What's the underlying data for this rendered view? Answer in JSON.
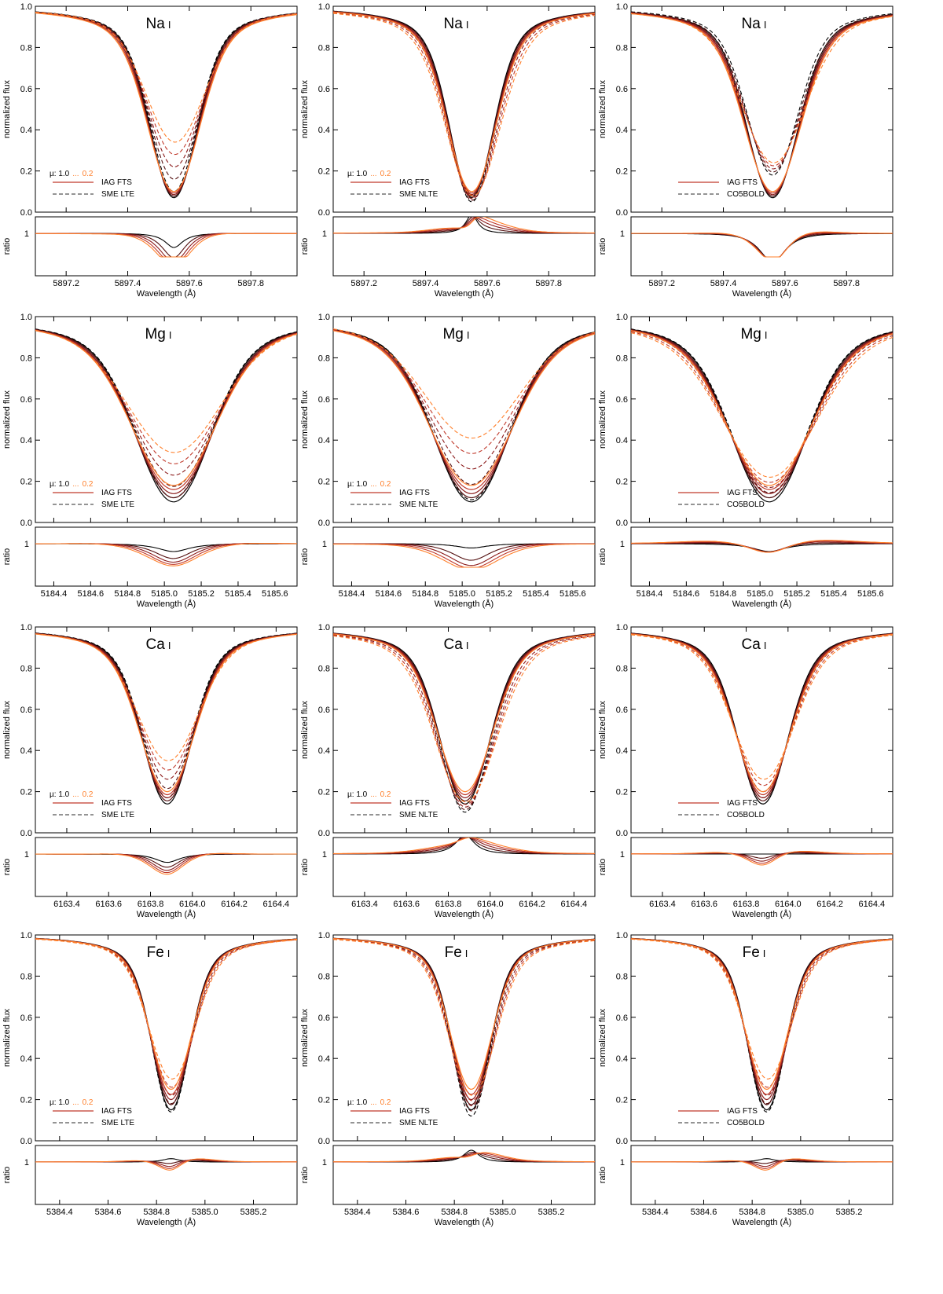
{
  "figure": {
    "ylabel_top": "normalized flux",
    "ylabel_bottom": "ratio",
    "xlabel": "Wavelength (Å)",
    "ratio_tick": "1",
    "mu_legend": {
      "prefix": "µ: 1.0",
      "dots": "...",
      "end": "0.2"
    },
    "legend_observed": "IAG FTS",
    "colors": {
      "black": "#000000",
      "dark_red": "#8b1a1a",
      "red": "#c0392b",
      "orange": "#ff7f2a",
      "axis": "#000000"
    }
  },
  "chart_data": [
    {
      "type": "line",
      "element": "Na",
      "ion": "I",
      "model": "SME LTE",
      "show_mu": true,
      "center": 5897.55,
      "depth_obs": [
        0.93,
        0.9
      ],
      "depth_model": [
        0.9,
        0.66
      ],
      "width": 0.13,
      "xlim": [
        5897.1,
        5897.95
      ],
      "xticks": [
        "5897.2",
        "5897.4",
        "5897.6",
        "5897.8"
      ],
      "yticks": [
        "0.0",
        "0.2",
        "0.4",
        "0.6",
        "0.8",
        "1.0"
      ],
      "ylim": [
        0,
        1
      ]
    },
    {
      "type": "line",
      "element": "Na",
      "ion": "I",
      "model": "SME NLTE",
      "show_mu": true,
      "center": 5897.55,
      "depth_obs": [
        0.93,
        0.9
      ],
      "depth_model": [
        0.95,
        0.92
      ],
      "width": 0.12,
      "xlim": [
        5897.1,
        5897.95
      ],
      "xticks": [
        "5897.2",
        "5897.4",
        "5897.6",
        "5897.8"
      ],
      "yticks": [
        "0.0",
        "0.2",
        "0.4",
        "0.6",
        "0.8",
        "1.0"
      ],
      "ylim": [
        0,
        1
      ]
    },
    {
      "type": "line",
      "element": "Na",
      "ion": "I",
      "model": "CO5BOLD",
      "show_mu": false,
      "center": 5897.56,
      "depth_obs": [
        0.93,
        0.9
      ],
      "depth_model": [
        0.82,
        0.76
      ],
      "width": 0.14,
      "xlim": [
        5897.1,
        5897.95
      ],
      "xticks": [
        "5897.2",
        "5897.4",
        "5897.6",
        "5897.8"
      ],
      "yticks": [
        "0.0",
        "0.2",
        "0.4",
        "0.6",
        "0.8",
        "1.0"
      ],
      "ylim": [
        0,
        1
      ]
    },
    {
      "type": "line",
      "element": "Mg",
      "ion": "I",
      "model": "SME LTE",
      "show_mu": true,
      "center": 5185.05,
      "depth_obs": [
        0.9,
        0.82
      ],
      "depth_model": [
        0.88,
        0.66
      ],
      "width": 0.35,
      "xlim": [
        5184.3,
        5185.72
      ],
      "xticks": [
        "5184.4",
        "5184.6",
        "5184.8",
        "5185.0",
        "5185.2",
        "5185.4",
        "5185.6"
      ],
      "yticks": [
        "0.0",
        "0.2",
        "0.4",
        "0.6",
        "0.8",
        "1.0"
      ],
      "ylim": [
        0,
        1
      ]
    },
    {
      "type": "line",
      "element": "Mg",
      "ion": "I",
      "model": "SME NLTE",
      "show_mu": true,
      "center": 5185.05,
      "depth_obs": [
        0.9,
        0.82
      ],
      "depth_model": [
        0.89,
        0.59
      ],
      "width": 0.35,
      "xlim": [
        5184.3,
        5185.72
      ],
      "xticks": [
        "5184.4",
        "5184.6",
        "5184.8",
        "5185.0",
        "5185.2",
        "5185.4",
        "5185.6"
      ],
      "yticks": [
        "0.0",
        "0.2",
        "0.4",
        "0.6",
        "0.8",
        "1.0"
      ],
      "ylim": [
        0,
        1
      ]
    },
    {
      "type": "line",
      "element": "Mg",
      "ion": "I",
      "model": "CO5BOLD",
      "show_mu": false,
      "center": 5185.05,
      "depth_obs": [
        0.9,
        0.82
      ],
      "depth_model": [
        0.88,
        0.78
      ],
      "width": 0.35,
      "xlim": [
        5184.3,
        5185.72
      ],
      "xticks": [
        "5184.4",
        "5184.6",
        "5184.8",
        "5185.0",
        "5185.2",
        "5185.4",
        "5185.6"
      ],
      "yticks": [
        "0.0",
        "0.2",
        "0.4",
        "0.6",
        "0.8",
        "1.0"
      ],
      "ylim": [
        0,
        1
      ]
    },
    {
      "type": "line",
      "element": "Ca",
      "ion": "I",
      "model": "SME LTE",
      "show_mu": true,
      "center": 6163.88,
      "depth_obs": [
        0.86,
        0.8
      ],
      "depth_model": [
        0.83,
        0.65
      ],
      "width": 0.2,
      "xlim": [
        6163.25,
        6164.5
      ],
      "xticks": [
        "6163.4",
        "6163.6",
        "6163.8",
        "6164.0",
        "6164.2",
        "6164.4"
      ],
      "yticks": [
        "0.0",
        "0.2",
        "0.4",
        "0.6",
        "0.8",
        "1.0"
      ],
      "ylim": [
        0,
        1
      ]
    },
    {
      "type": "line",
      "element": "Ca",
      "ion": "I",
      "model": "SME NLTE",
      "show_mu": true,
      "center": 6163.88,
      "depth_obs": [
        0.86,
        0.8
      ],
      "depth_model": [
        0.9,
        0.85
      ],
      "width": 0.2,
      "xlim": [
        6163.25,
        6164.5
      ],
      "xticks": [
        "6163.4",
        "6163.6",
        "6163.8",
        "6164.0",
        "6164.2",
        "6164.4"
      ],
      "yticks": [
        "0.0",
        "0.2",
        "0.4",
        "0.6",
        "0.8",
        "1.0"
      ],
      "ylim": [
        0,
        1
      ]
    },
    {
      "type": "line",
      "element": "Ca",
      "ion": "I",
      "model": "CO5BOLD",
      "show_mu": false,
      "center": 6163.88,
      "depth_obs": [
        0.86,
        0.8
      ],
      "depth_model": [
        0.86,
        0.74
      ],
      "width": 0.2,
      "xlim": [
        6163.25,
        6164.5
      ],
      "xticks": [
        "6163.4",
        "6163.6",
        "6163.8",
        "6164.0",
        "6164.2",
        "6164.4"
      ],
      "yticks": [
        "0.0",
        "0.2",
        "0.4",
        "0.6",
        "0.8",
        "1.0"
      ],
      "ylim": [
        0,
        1
      ]
    },
    {
      "type": "line",
      "element": "Fe",
      "ion": "I",
      "model": "SME LTE",
      "show_mu": true,
      "center": 5384.86,
      "depth_obs": [
        0.85,
        0.75
      ],
      "depth_model": [
        0.86,
        0.7
      ],
      "width": 0.13,
      "xlim": [
        5384.3,
        5385.38
      ],
      "xticks": [
        "5384.4",
        "5384.6",
        "5384.8",
        "5385.0",
        "5385.2"
      ],
      "yticks": [
        "0.0",
        "0.2",
        "0.4",
        "0.6",
        "0.8",
        "1.0"
      ],
      "ylim": [
        0,
        1
      ]
    },
    {
      "type": "line",
      "element": "Fe",
      "ion": "I",
      "model": "SME NLTE",
      "show_mu": true,
      "center": 5384.87,
      "depth_obs": [
        0.85,
        0.75
      ],
      "depth_model": [
        0.88,
        0.78
      ],
      "width": 0.13,
      "xlim": [
        5384.3,
        5385.38
      ],
      "xticks": [
        "5384.4",
        "5384.6",
        "5384.8",
        "5385.0",
        "5385.2"
      ],
      "yticks": [
        "0.0",
        "0.2",
        "0.4",
        "0.6",
        "0.8",
        "1.0"
      ],
      "ylim": [
        0,
        1
      ]
    },
    {
      "type": "line",
      "element": "Fe",
      "ion": "I",
      "model": "CO5BOLD",
      "show_mu": false,
      "center": 5384.86,
      "depth_obs": [
        0.85,
        0.75
      ],
      "depth_model": [
        0.86,
        0.7
      ],
      "width": 0.13,
      "xlim": [
        5384.3,
        5385.38
      ],
      "xticks": [
        "5384.4",
        "5384.6",
        "5384.8",
        "5385.0",
        "5385.2"
      ],
      "yticks": [
        "0.0",
        "0.2",
        "0.4",
        "0.6",
        "0.8",
        "1.0"
      ],
      "ylim": [
        0,
        1
      ]
    }
  ]
}
